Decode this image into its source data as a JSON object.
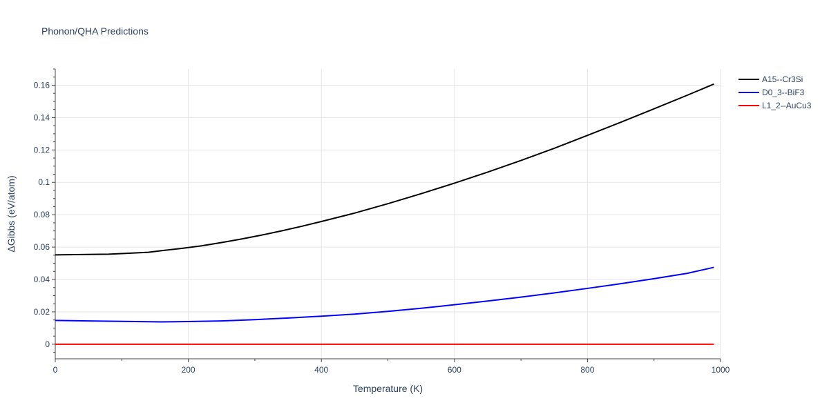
{
  "chart_data": {
    "type": "line",
    "title": "Phonon/QHA Predictions",
    "xlabel": "Temperature (K)",
    "ylabel": "ΔGibbs (eV/atom)",
    "xlim": [
      0,
      1000
    ],
    "ylim": [
      -0.009,
      0.17
    ],
    "xticks": [
      0,
      200,
      400,
      600,
      800,
      1000
    ],
    "xtick_labels": [
      "0",
      "200",
      "400",
      "600",
      "800",
      "1000"
    ],
    "yticks": [
      0,
      0.02,
      0.04,
      0.06,
      0.08,
      0.1,
      0.12,
      0.14,
      0.16
    ],
    "ytick_labels": [
      "0",
      "0.02",
      "0.04",
      "0.06",
      "0.08",
      "0.1",
      "0.12",
      "0.14",
      "0.16"
    ],
    "grid": true,
    "legend_position": "top-right",
    "series": [
      {
        "name": "A15--Cr3Si",
        "color": "#000000",
        "x": [
          0,
          40,
          80,
          100,
          140,
          160,
          190,
          220,
          250,
          280,
          310,
          340,
          370,
          400,
          450,
          500,
          550,
          600,
          650,
          700,
          750,
          800,
          850,
          900,
          950,
          990
        ],
        "y": [
          0.0552,
          0.0554,
          0.0556,
          0.056,
          0.0568,
          0.0578,
          0.0592,
          0.0608,
          0.0628,
          0.065,
          0.0674,
          0.07,
          0.0728,
          0.0758,
          0.081,
          0.0868,
          0.093,
          0.0995,
          0.1063,
          0.1135,
          0.121,
          0.129,
          0.1371,
          0.1454,
          0.1538,
          0.1607
        ]
      },
      {
        "name": "D0_3--BiF3",
        "color": "#0000ff",
        "x": [
          0,
          50,
          100,
          160,
          200,
          250,
          300,
          350,
          400,
          450,
          500,
          550,
          600,
          650,
          700,
          750,
          800,
          850,
          900,
          950,
          990
        ],
        "y": [
          0.0147,
          0.0144,
          0.0141,
          0.0138,
          0.014,
          0.0144,
          0.0152,
          0.0162,
          0.0173,
          0.0186,
          0.0203,
          0.0222,
          0.0244,
          0.0267,
          0.0291,
          0.0317,
          0.0345,
          0.0374,
          0.0405,
          0.0438,
          0.0475
        ]
      },
      {
        "name": "L1_2--AuCu3",
        "color": "#ff0000",
        "x": [
          0,
          990
        ],
        "y": [
          0,
          0
        ]
      }
    ]
  }
}
